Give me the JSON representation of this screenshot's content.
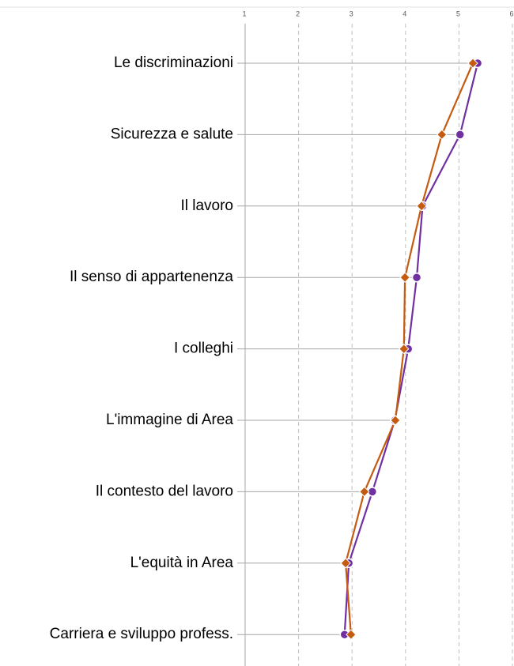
{
  "chart_data": {
    "type": "line",
    "orientation": "horizontal",
    "categories": [
      "Le discriminazioni",
      "Sicurezza e salute",
      "Il lavoro",
      "Il senso di appartenenza",
      "I colleghi",
      "L'immagine di Area",
      "Il contesto del lavoro",
      "L'equità in Area",
      "Carriera e sviluppo profess."
    ],
    "series": [
      {
        "color": "#7030a0",
        "marker": "circle",
        "values": [
          5.35,
          5.02,
          4.32,
          4.21,
          4.05,
          3.8,
          3.38,
          2.94,
          2.86
        ]
      },
      {
        "color": "#c55a11",
        "marker": "diamond",
        "values": [
          5.26,
          4.68,
          4.3,
          3.99,
          3.97,
          3.81,
          3.23,
          2.88,
          2.98
        ]
      }
    ],
    "xlim": [
      1,
      6
    ],
    "xticks": [
      1,
      2,
      3,
      4,
      5,
      6
    ],
    "grid": true
  }
}
